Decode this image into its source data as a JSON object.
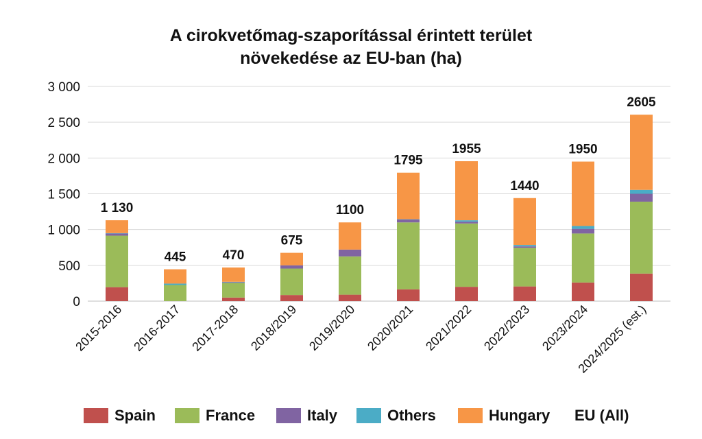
{
  "chart_data": {
    "type": "bar",
    "stacked": true,
    "title_lines": [
      "A cirokvetőmag-szaporítással érintett terület",
      "növekedése az EU-ban (ha)"
    ],
    "categories": [
      "2015-2016",
      "2016-2017",
      "2017-2018",
      "2018/2019",
      "2019/2020",
      "2020/2021",
      "2021/2022",
      "2022/2023",
      "2023/2024",
      "2024/2025 (est.)"
    ],
    "series": [
      {
        "name": "Spain",
        "color": "#c0504d",
        "values": [
          195,
          0,
          50,
          85,
          90,
          165,
          200,
          205,
          260,
          385
        ]
      },
      {
        "name": "France",
        "color": "#9bbb59",
        "values": [
          720,
          225,
          205,
          370,
          535,
          935,
          885,
          540,
          685,
          1005
        ]
      },
      {
        "name": "Italy",
        "color": "#8064a2",
        "values": [
          30,
          0,
          10,
          45,
          95,
          40,
          25,
          20,
          65,
          110
        ]
      },
      {
        "name": "Others",
        "color": "#4bacc6",
        "values": [
          5,
          20,
          5,
          0,
          0,
          5,
          20,
          20,
          40,
          55
        ]
      },
      {
        "name": "Hungary",
        "color": "#f79646",
        "values": [
          180,
          200,
          200,
          175,
          380,
          650,
          825,
          655,
          900,
          1050
        ]
      }
    ],
    "totals_name": "EU (All)",
    "totals": [
      "1 130",
      "445",
      "470",
      "675",
      "1100",
      "1795",
      "1955",
      "1440",
      "1950",
      "2605"
    ],
    "ylim": [
      0,
      3000
    ],
    "yticks": [
      0,
      500,
      1000,
      1500,
      2000,
      2500,
      3000
    ],
    "ytick_labels": [
      "0",
      "500",
      "1 000",
      "1 500",
      "2 000",
      "2 500",
      "3 000"
    ],
    "grid": true,
    "legend_position": "bottom"
  }
}
